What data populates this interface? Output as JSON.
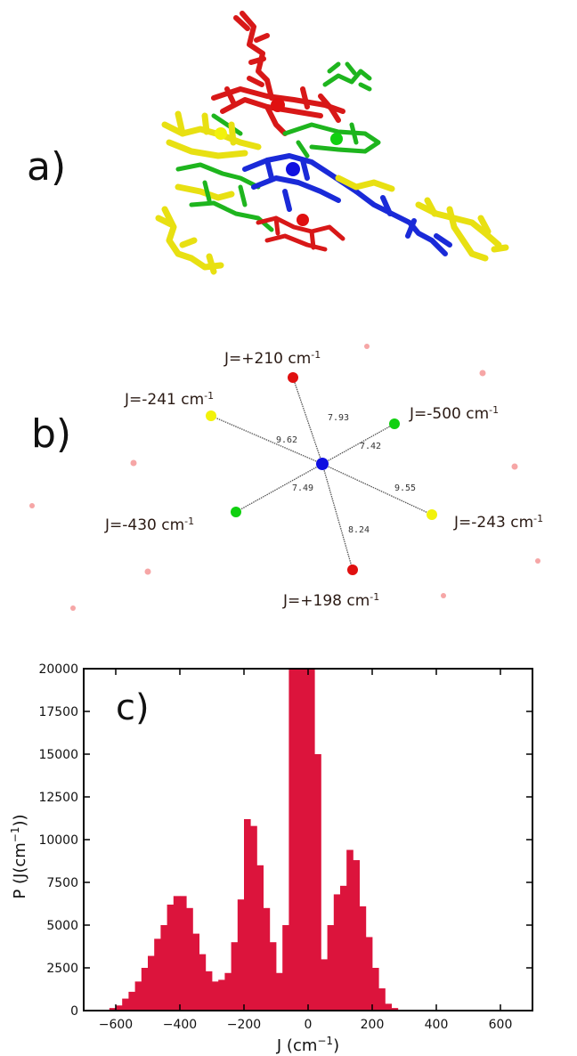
{
  "panels": {
    "a": "a)",
    "b": "b)",
    "c": "c)"
  },
  "network": {
    "center": {
      "color": "#1010e0"
    },
    "nodes": [
      {
        "name": "top-red",
        "color": "#e01010",
        "J": "J=+210 cm",
        "bond": "7.93"
      },
      {
        "name": "upleft-yellow",
        "color": "#f2f20a",
        "J": "J=-241 cm",
        "bond": "9.62"
      },
      {
        "name": "upright-green",
        "color": "#10d010",
        "J": "J=-500 cm",
        "bond": "7.42"
      },
      {
        "name": "lowleft-green",
        "color": "#10d010",
        "J": "J=-430 cm",
        "bond": "7.49"
      },
      {
        "name": "lowright-yellow",
        "color": "#f2f20a",
        "J": "J=-243 cm",
        "bond": "9.55"
      },
      {
        "name": "bottom-red",
        "color": "#e01010",
        "J": "J=+198 cm",
        "bond": "8.24"
      }
    ],
    "superscript": "-1"
  },
  "chart_data": {
    "type": "bar",
    "xlabel": "J (cm",
    "xlabel_sup": "−1",
    "xlabel_end": ")",
    "ylabel": "P (J(cm",
    "ylabel_sup": "−1",
    "ylabel_end": "))",
    "xlim": [
      -700,
      700
    ],
    "ylim": [
      0,
      20000
    ],
    "bin_width": 20,
    "xticks": [
      -600,
      -400,
      -200,
      0,
      200,
      400,
      600
    ],
    "xtick_labels": [
      "−600",
      "−400",
      "−200",
      "0",
      "200",
      "400",
      "600"
    ],
    "yticks": [
      0,
      2500,
      5000,
      7500,
      10000,
      12500,
      15000,
      17500,
      20000
    ],
    "ytick_labels": [
      "0",
      "2500",
      "5000",
      "7500",
      "10000",
      "12500",
      "15000",
      "17500",
      "20000"
    ],
    "bar_color": "#dc143c",
    "bin_starts": [
      -640,
      -620,
      -600,
      -580,
      -560,
      -540,
      -520,
      -500,
      -480,
      -460,
      -440,
      -420,
      -400,
      -380,
      -360,
      -340,
      -320,
      -300,
      -280,
      -260,
      -240,
      -220,
      -200,
      -180,
      -160,
      -140,
      -120,
      -100,
      -80,
      -60,
      -40,
      -20,
      0,
      20,
      40,
      60,
      80,
      100,
      120,
      140,
      160,
      180,
      200,
      220,
      240,
      260,
      280,
      300
    ],
    "values": [
      50,
      150,
      300,
      700,
      1100,
      1700,
      2500,
      3200,
      4200,
      5000,
      6200,
      6700,
      6700,
      6000,
      4500,
      3300,
      2300,
      1700,
      1800,
      2200,
      4000,
      6500,
      11200,
      10800,
      8500,
      6000,
      4000,
      2200,
      5000,
      20000,
      20000,
      20000,
      20000,
      15000,
      3000,
      5000,
      6800,
      7300,
      9400,
      8800,
      6100,
      4300,
      2500,
      1300,
      400,
      150,
      50,
      20
    ]
  }
}
